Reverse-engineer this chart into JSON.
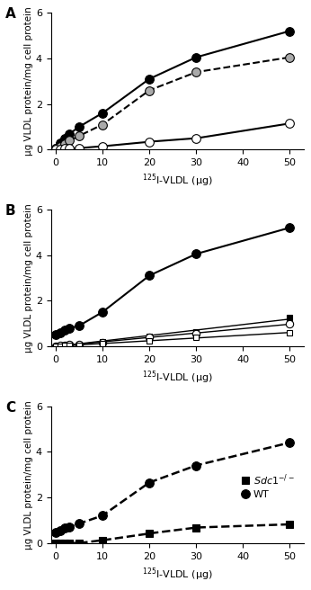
{
  "x_ticks": [
    0,
    10,
    20,
    30,
    40,
    50
  ],
  "xlabel": "$^{125}$I-VLDL (μg)",
  "ylabel": "μg VLDL protein/mg cell protein",
  "ylim": [
    0,
    6
  ],
  "yticks": [
    0,
    2,
    4,
    6
  ],
  "panelA": {
    "label": "A",
    "series": [
      {
        "x": [
          0,
          1,
          2,
          3,
          5,
          10,
          20,
          30,
          50
        ],
        "y": [
          0.05,
          0.3,
          0.5,
          0.7,
          1.0,
          1.6,
          3.1,
          4.05,
          5.2
        ],
        "marker": "o",
        "markercolor": "black",
        "markerfill": "black",
        "linestyle": "-",
        "linecolor": "black",
        "linewidth": 1.5,
        "markersize": 7
      },
      {
        "x": [
          0,
          1,
          2,
          3,
          5,
          10,
          20,
          30,
          50
        ],
        "y": [
          0.05,
          0.15,
          0.25,
          0.4,
          0.6,
          1.1,
          2.6,
          3.4,
          4.05
        ],
        "marker": "o",
        "markercolor": "#aaaaaa",
        "markerfill": "#aaaaaa",
        "linestyle": "--",
        "linecolor": "black",
        "linewidth": 1.5,
        "markersize": 7
      },
      {
        "x": [
          0,
          1,
          2,
          3,
          5,
          10,
          20,
          30,
          50
        ],
        "y": [
          0.02,
          0.03,
          0.04,
          0.05,
          0.07,
          0.15,
          0.35,
          0.5,
          1.15
        ],
        "marker": "o",
        "markercolor": "white",
        "markerfill": "white",
        "linestyle": "-",
        "linecolor": "black",
        "linewidth": 1.5,
        "markersize": 7
      }
    ]
  },
  "panelB": {
    "label": "B",
    "series": [
      {
        "x": [
          0,
          1,
          2,
          3,
          5,
          10,
          20,
          30,
          50
        ],
        "y": [
          0.5,
          0.6,
          0.7,
          0.8,
          0.9,
          1.5,
          3.1,
          4.05,
          5.2
        ],
        "marker": "o",
        "markercolor": "black",
        "markerfill": "black",
        "linestyle": "-",
        "linecolor": "black",
        "linewidth": 1.5,
        "markersize": 7,
        "fit": true
      },
      {
        "x": [
          0,
          1,
          2,
          3,
          5,
          10,
          20,
          30,
          50
        ],
        "y": [
          0.02,
          0.04,
          0.06,
          0.08,
          0.1,
          0.2,
          0.45,
          0.65,
          1.25
        ],
        "marker": "s",
        "markercolor": "black",
        "markerfill": "black",
        "linestyle": "-",
        "linecolor": "black",
        "linewidth": 1.0,
        "markersize": 5,
        "fit": false
      },
      {
        "x": [
          0,
          1,
          2,
          3,
          5,
          10,
          20,
          30,
          50
        ],
        "y": [
          0.02,
          0.04,
          0.05,
          0.07,
          0.09,
          0.18,
          0.38,
          0.55,
          1.0
        ],
        "marker": "o",
        "markercolor": "white",
        "markerfill": "white",
        "linestyle": "-",
        "linecolor": "black",
        "linewidth": 1.0,
        "markersize": 6,
        "fit": false
      },
      {
        "x": [
          0,
          1,
          2,
          3,
          5,
          10,
          20,
          30,
          50
        ],
        "y": [
          0.01,
          0.02,
          0.03,
          0.04,
          0.05,
          0.12,
          0.25,
          0.38,
          0.6
        ],
        "marker": "s",
        "markercolor": "white",
        "markerfill": "white",
        "linestyle": "-",
        "linecolor": "black",
        "linewidth": 1.0,
        "markersize": 5,
        "fit": false
      }
    ]
  },
  "panelC": {
    "label": "C",
    "series": [
      {
        "x": [
          0,
          1,
          2,
          3,
          5,
          10,
          20,
          30,
          50
        ],
        "y": [
          0.45,
          0.55,
          0.65,
          0.72,
          0.85,
          1.2,
          2.65,
          3.4,
          4.4
        ],
        "marker": "o",
        "markercolor": "black",
        "markerfill": "black",
        "linestyle": "--",
        "linecolor": "black",
        "linewidth": 1.8,
        "markersize": 7,
        "legend": "WT"
      },
      {
        "x": [
          0,
          1,
          2,
          3,
          5,
          10,
          20,
          30,
          50
        ],
        "y": [
          0.0,
          0.0,
          0.0,
          0.0,
          0.0,
          0.12,
          0.42,
          0.68,
          0.82
        ],
        "marker": "s",
        "markercolor": "black",
        "markerfill": "black",
        "linestyle": "--",
        "linecolor": "black",
        "linewidth": 1.8,
        "markersize": 6,
        "legend": "$Sdc1^{-/-}$"
      }
    ]
  }
}
